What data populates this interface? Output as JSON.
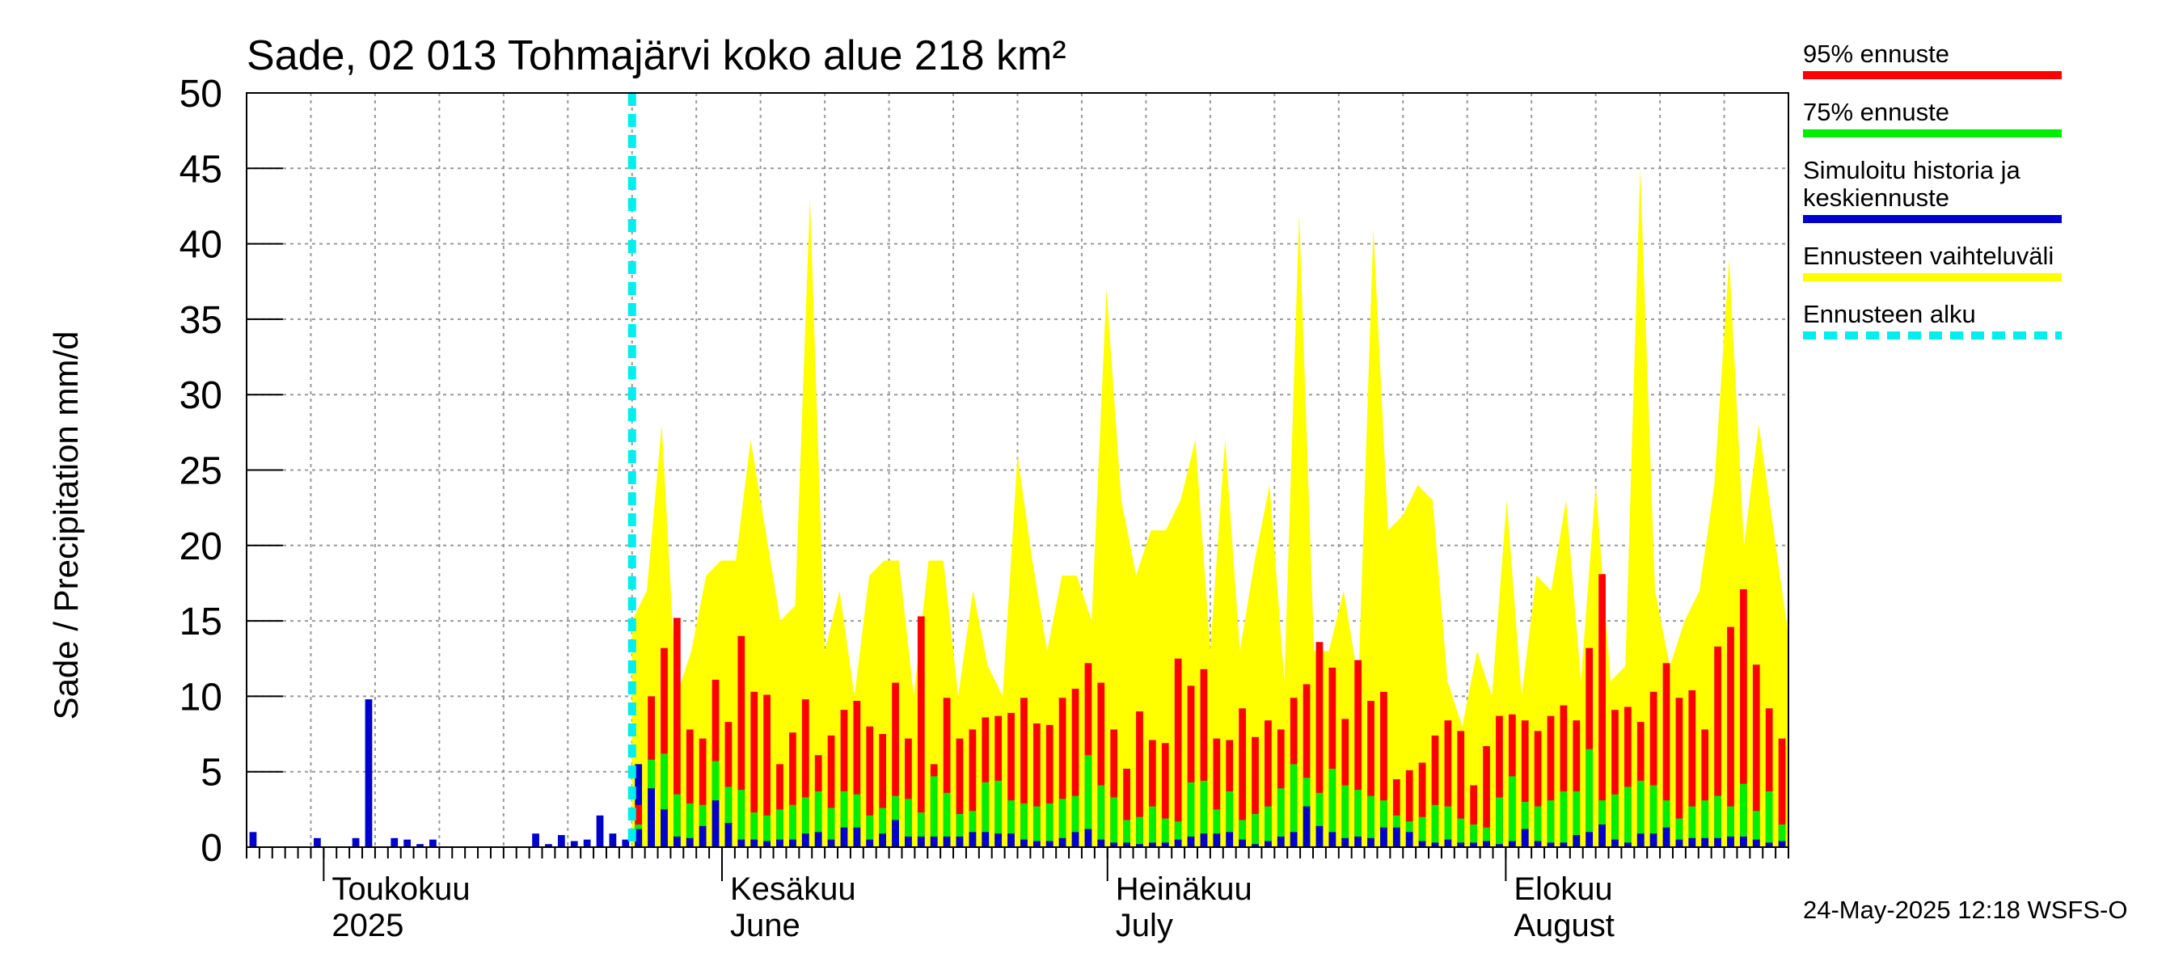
{
  "chart_data": {
    "type": "bar",
    "title": "Sade, 02 013 Tohmajärvi koko alue 218 km²",
    "ylabel": "Sade / Precipitation   mm/d",
    "ylim": [
      0,
      50
    ],
    "yticks": [
      "0",
      "5",
      "10",
      "15",
      "20",
      "25",
      "30",
      "35",
      "40",
      "45",
      "50"
    ],
    "month_labels": [
      {
        "line1": "Toukokuu",
        "line2": "2025",
        "day": 6
      },
      {
        "line1": "Kesäkuu",
        "line2": "June",
        "day": 37
      },
      {
        "line1": "Heinäkuu",
        "line2": "July",
        "day": 67
      },
      {
        "line1": "Elokuu",
        "line2": "August",
        "day": 98
      }
    ],
    "x_range_days": [
      0,
      120
    ],
    "forecast_start_day": 30,
    "history": [
      1.0,
      0,
      0,
      0,
      0,
      0.6,
      0,
      0,
      0.6,
      9.8,
      0,
      0.6,
      0.5,
      0.2,
      0.5,
      0,
      0,
      0,
      0,
      0,
      0,
      0,
      0.9,
      0.2,
      0.8,
      0.4,
      0.5,
      2.1,
      0.9,
      0.5,
      5.5
    ],
    "forecast_range": [
      15,
      17,
      28,
      10,
      13,
      18,
      19,
      19,
      27,
      21,
      15,
      16,
      43,
      13,
      17,
      10,
      18,
      19,
      19,
      10,
      19,
      19,
      10,
      17,
      12,
      10,
      26,
      19,
      13,
      18,
      18,
      15,
      37,
      23,
      18,
      21,
      21,
      23,
      27,
      13,
      27,
      13,
      19,
      24,
      11,
      42,
      13,
      13,
      17,
      11,
      41,
      21,
      22,
      24,
      23,
      11,
      8,
      13,
      10,
      23,
      10,
      18,
      17,
      23,
      11,
      24,
      11,
      12,
      45,
      17,
      12,
      15,
      17,
      24,
      39,
      20,
      28,
      21,
      14
    ],
    "series": [
      {
        "name": "95% ennuste",
        "color": "#ff0000",
        "values": [
          2.8,
          10.0,
          13.2,
          15.2,
          7.8,
          7.2,
          11.1,
          8.3,
          14.0,
          10.3,
          10.1,
          5.5,
          7.6,
          9.8,
          6.1,
          7.4,
          9.1,
          9.7,
          8.0,
          7.5,
          10.9,
          7.2,
          15.3,
          5.5,
          9.9,
          7.2,
          7.8,
          8.6,
          8.7,
          8.9,
          9.9,
          8.2,
          8.1,
          9.9,
          10.5,
          12.2,
          10.9,
          7.8,
          5.2,
          9.0,
          7.1,
          6.9,
          12.5,
          10.7,
          11.8,
          7.2,
          7.1,
          9.2,
          7.3,
          8.4,
          7.8,
          9.9,
          10.8,
          13.6,
          11.9,
          8.5,
          12.4,
          9.7,
          10.3,
          4.5,
          5.1,
          5.6,
          7.4,
          8.4,
          7.7,
          4.1,
          6.7,
          8.7,
          8.8,
          8.4,
          7.7,
          8.7,
          9.4,
          8.4,
          13.2,
          18.1,
          9.1,
          9.3,
          8.3,
          10.3,
          12.2,
          9.9,
          10.4,
          7.8,
          13.3,
          14.6,
          17.1,
          12.1,
          9.2,
          7.2
        ]
      },
      {
        "name": "75% ennuste",
        "color": "#00ee00",
        "values": [
          1.5,
          5.8,
          6.2,
          3.5,
          2.9,
          2.8,
          5.7,
          4.0,
          3.8,
          2.3,
          2.1,
          2.5,
          2.8,
          3.3,
          3.7,
          2.6,
          3.7,
          3.5,
          2.1,
          2.6,
          3.4,
          3.2,
          2.3,
          4.7,
          3.6,
          2.2,
          2.4,
          4.3,
          4.4,
          3.1,
          2.9,
          2.7,
          2.9,
          3.2,
          3.4,
          6.1,
          4.1,
          3.3,
          1.8,
          2.0,
          2.7,
          1.9,
          1.7,
          4.3,
          4.4,
          2.5,
          3.7,
          1.8,
          2.2,
          2.7,
          3.9,
          5.5,
          4.6,
          3.6,
          5.2,
          4.1,
          3.8,
          3.4,
          3.1,
          2.1,
          1.7,
          2.0,
          2.8,
          2.7,
          1.9,
          1.5,
          1.3,
          3.3,
          4.7,
          3.0,
          2.7,
          3.1,
          3.7,
          3.7,
          6.5,
          3.1,
          3.5,
          4.0,
          4.4,
          4.1,
          3.1,
          1.9,
          2.7,
          3.1,
          3.4,
          2.7,
          4.2,
          2.4,
          3.7,
          1.5
        ]
      },
      {
        "name": "Simuloitu historia ja keskiennuste",
        "color": "#0000cc",
        "values": [
          1.2,
          3.9,
          2.5,
          0.7,
          0.6,
          1.4,
          3.1,
          1.6,
          0.5,
          0.5,
          0.4,
          0.5,
          0.5,
          0.9,
          1.0,
          0.5,
          1.3,
          1.3,
          0.5,
          0.9,
          1.8,
          0.7,
          0.7,
          0.7,
          0.7,
          0.7,
          1.0,
          1.0,
          0.9,
          0.9,
          0.5,
          0.4,
          0.4,
          0.6,
          1.0,
          1.2,
          0.5,
          0.3,
          0.3,
          0.2,
          0.3,
          0.3,
          0.5,
          0.7,
          0.9,
          0.9,
          1.0,
          0.5,
          0.2,
          0.4,
          0.7,
          1.0,
          2.7,
          1.4,
          1.0,
          0.6,
          0.7,
          0.6,
          1.3,
          1.3,
          1.0,
          0.4,
          0.3,
          0.5,
          0.3,
          0.3,
          0.4,
          0.2,
          0.4,
          1.2,
          0.4,
          0.3,
          0.3,
          0.8,
          1.0,
          1.5,
          0.5,
          0.3,
          0.9,
          0.9,
          1.3,
          0.5,
          0.6,
          0.6,
          0.6,
          0.7,
          0.7,
          0.5,
          0.3,
          0.4
        ]
      }
    ],
    "legend": [
      {
        "label": "95% ennuste",
        "color": "#ff0000",
        "style": "solid"
      },
      {
        "label": "75% ennuste",
        "color": "#00ee00",
        "style": "solid"
      },
      {
        "label": "Simuloitu historia ja keskiennuste",
        "color": "#0000cc",
        "style": "solid"
      },
      {
        "label": "Ennusteen vaihteluväli",
        "color": "#ffff00",
        "style": "solid"
      },
      {
        "label": "Ennusteen alku",
        "color": "#00eeee",
        "style": "dashed"
      }
    ]
  },
  "footer": "24-May-2025 12:18 WSFS-O"
}
